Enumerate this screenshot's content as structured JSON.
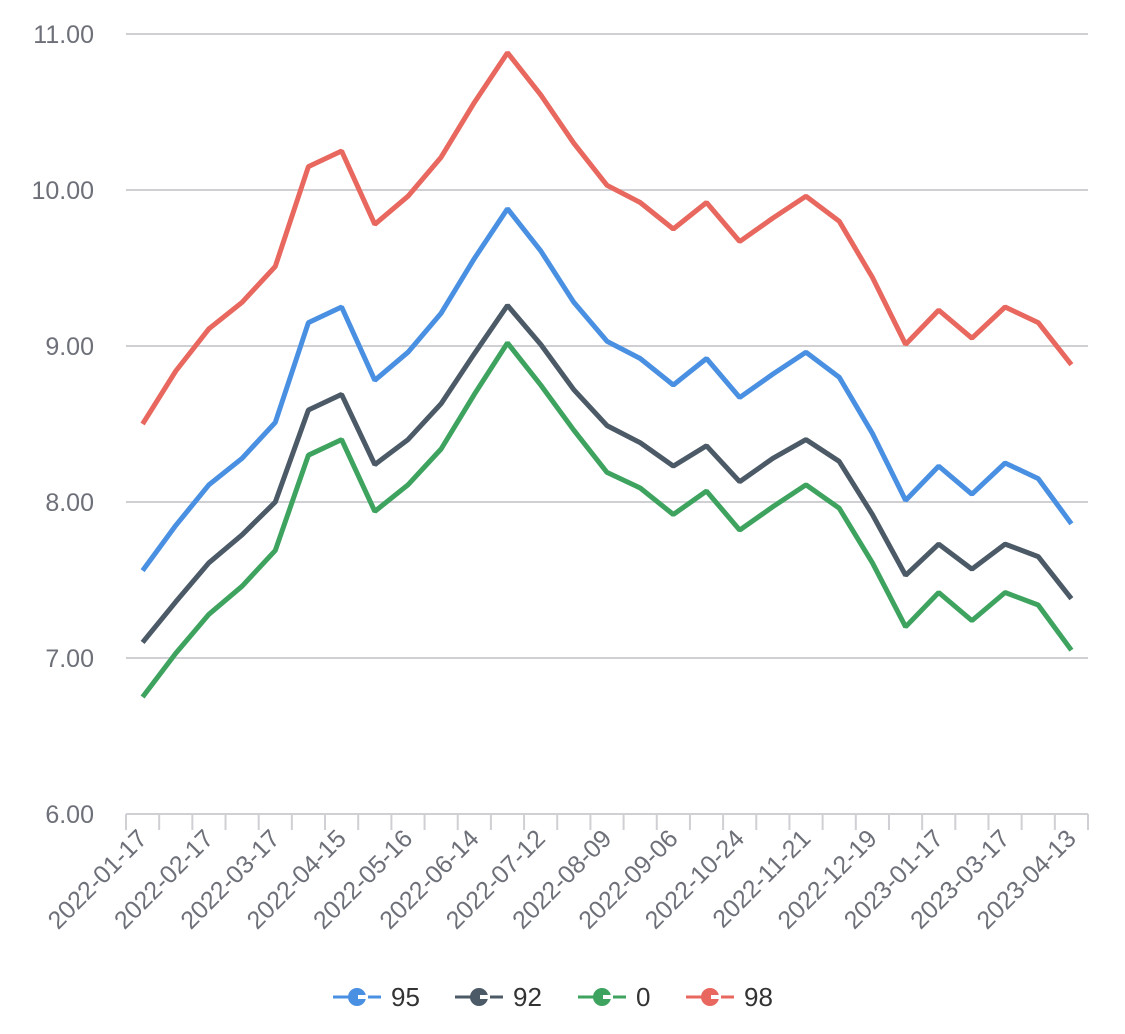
{
  "chart_data": {
    "type": "line",
    "title": "",
    "xlabel": "",
    "ylabel": "",
    "ylim": [
      6,
      11
    ],
    "yticks": [
      "6.00",
      "7.00",
      "8.00",
      "9.00",
      "10.00",
      "11.00"
    ],
    "grid": true,
    "legend": "bottom",
    "x": [
      "2022-01-17",
      "",
      "2022-02-17",
      "",
      "2022-03-17",
      "",
      "2022-04-15",
      "",
      "2022-05-16",
      "",
      "2022-06-14",
      "",
      "2022-07-12",
      "",
      "2022-08-09",
      "",
      "2022-09-06",
      "",
      "2022-10-24",
      "",
      "2022-11-21",
      "",
      "2022-12-19",
      "",
      "2023-01-17",
      "",
      "2023-03-17",
      "",
      "2023-04-13"
    ],
    "series": [
      {
        "name": "95",
        "color": "#4a90e2",
        "values": [
          7.56,
          7.85,
          8.11,
          8.28,
          8.51,
          9.15,
          9.25,
          8.78,
          8.96,
          9.21,
          9.56,
          9.88,
          9.61,
          9.28,
          9.03,
          8.92,
          8.75,
          8.92,
          8.67,
          8.82,
          8.96,
          8.8,
          8.44,
          8.01,
          8.23,
          8.05,
          8.25,
          8.15,
          7.86
        ]
      },
      {
        "name": "92",
        "color": "#4b5a66",
        "values": [
          7.1,
          7.36,
          7.61,
          7.79,
          8.0,
          8.59,
          8.69,
          8.24,
          8.4,
          8.63,
          8.95,
          9.26,
          9.01,
          8.72,
          8.49,
          8.38,
          8.23,
          8.36,
          8.13,
          8.28,
          8.4,
          8.26,
          7.92,
          7.53,
          7.73,
          7.57,
          7.73,
          7.65,
          7.38
        ]
      },
      {
        "name": "0",
        "color": "#3ea35f",
        "values": [
          6.75,
          7.03,
          7.28,
          7.46,
          7.69,
          8.3,
          8.4,
          7.94,
          8.11,
          8.34,
          8.69,
          9.02,
          8.75,
          8.46,
          8.19,
          8.09,
          7.92,
          8.07,
          7.82,
          7.97,
          8.11,
          7.96,
          7.61,
          7.2,
          7.42,
          7.24,
          7.42,
          7.34,
          7.05
        ]
      },
      {
        "name": "98",
        "color": "#e8675e",
        "values": [
          8.5,
          8.84,
          9.11,
          9.28,
          9.51,
          10.15,
          10.25,
          9.78,
          9.96,
          10.21,
          10.56,
          10.88,
          10.61,
          10.3,
          10.03,
          9.92,
          9.75,
          9.92,
          9.67,
          9.82,
          9.96,
          9.8,
          9.44,
          9.01,
          9.23,
          9.05,
          9.25,
          9.15,
          8.88
        ]
      }
    ]
  }
}
